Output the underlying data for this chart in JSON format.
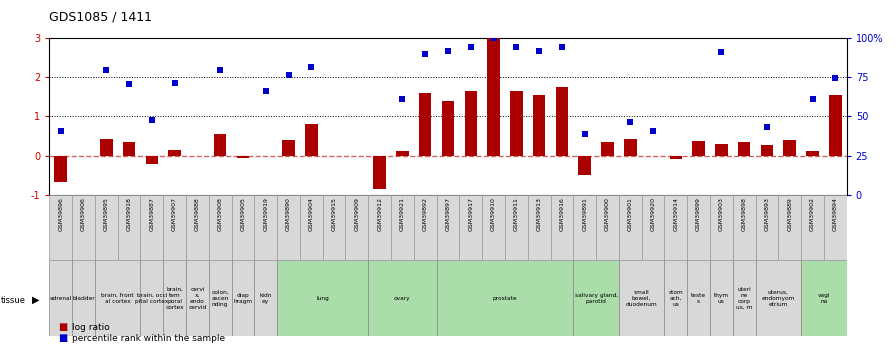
{
  "title": "GDS1085 / 1411",
  "samples": [
    "GSM39896",
    "GSM39906",
    "GSM39895",
    "GSM39918",
    "GSM39887",
    "GSM39907",
    "GSM39888",
    "GSM39908",
    "GSM39905",
    "GSM39919",
    "GSM39890",
    "GSM39904",
    "GSM39915",
    "GSM39909",
    "GSM39912",
    "GSM39921",
    "GSM39892",
    "GSM39897",
    "GSM39917",
    "GSM39910",
    "GSM39911",
    "GSM39913",
    "GSM39916",
    "GSM39891",
    "GSM39900",
    "GSM39901",
    "GSM39920",
    "GSM39914",
    "GSM39899",
    "GSM39903",
    "GSM39898",
    "GSM39893",
    "GSM39889",
    "GSM39902",
    "GSM39894"
  ],
  "log_ratio": [
    -0.68,
    0.0,
    0.42,
    0.35,
    -0.22,
    0.15,
    0.0,
    0.55,
    -0.05,
    0.0,
    0.4,
    0.82,
    0.0,
    0.0,
    -0.85,
    0.12,
    1.6,
    1.4,
    1.65,
    3.0,
    1.65,
    1.55,
    1.75,
    -0.5,
    0.35,
    0.42,
    0.0,
    -0.08,
    0.38,
    0.3,
    0.35,
    0.27,
    0.4,
    0.12,
    1.55
  ],
  "percentile_rank": [
    0.62,
    null,
    2.18,
    1.82,
    0.92,
    1.85,
    null,
    2.18,
    null,
    1.65,
    2.05,
    2.25,
    null,
    null,
    null,
    1.45,
    2.58,
    2.68,
    2.78,
    3.0,
    2.78,
    2.68,
    2.78,
    0.55,
    null,
    0.85,
    0.62,
    null,
    null,
    2.65,
    null,
    0.72,
    null,
    1.45,
    1.98
  ],
  "tissues": [
    {
      "name": "adrenal",
      "start": 0,
      "end": 1,
      "green": false
    },
    {
      "name": "bladder",
      "start": 1,
      "end": 2,
      "green": false
    },
    {
      "name": "brain, front\nal cortex",
      "start": 2,
      "end": 4,
      "green": false
    },
    {
      "name": "brain, occi\npital cortex",
      "start": 4,
      "end": 5,
      "green": false
    },
    {
      "name": "brain,\ntem\nporal\ncortex",
      "start": 5,
      "end": 6,
      "green": false
    },
    {
      "name": "cervi\nx,\nendo\ncervid",
      "start": 6,
      "end": 7,
      "green": false
    },
    {
      "name": "colon,\nascen\nnding",
      "start": 7,
      "end": 8,
      "green": false
    },
    {
      "name": "diap\nhragm",
      "start": 8,
      "end": 9,
      "green": false
    },
    {
      "name": "kidn\ney",
      "start": 9,
      "end": 10,
      "green": false
    },
    {
      "name": "lung",
      "start": 10,
      "end": 14,
      "green": true
    },
    {
      "name": "ovary",
      "start": 14,
      "end": 17,
      "green": true
    },
    {
      "name": "prostate",
      "start": 17,
      "end": 23,
      "green": true
    },
    {
      "name": "salivary gland,\nparotid",
      "start": 23,
      "end": 25,
      "green": true
    },
    {
      "name": "small\nbowel,\nduodenum",
      "start": 25,
      "end": 27,
      "green": false
    },
    {
      "name": "stom\nach,\nus",
      "start": 27,
      "end": 28,
      "green": false
    },
    {
      "name": "teste\ns",
      "start": 28,
      "end": 29,
      "green": false
    },
    {
      "name": "thym\nus",
      "start": 29,
      "end": 30,
      "green": false
    },
    {
      "name": "uteri\nne\ncorp\nus, m",
      "start": 30,
      "end": 31,
      "green": false
    },
    {
      "name": "uterus,\nendomyom\netrium",
      "start": 31,
      "end": 33,
      "green": false
    },
    {
      "name": "vagi\nna",
      "start": 33,
      "end": 35,
      "green": true
    }
  ],
  "bar_color": "#aa0000",
  "dot_color": "#0000cc",
  "gray_tissue_color": "#d8d8d8",
  "green_tissue_color": "#aaddaa",
  "sample_box_color": "#d8d8d8",
  "hline_zero_color": "#cc6666",
  "chart_bg": "#ffffff",
  "left_axis_color": "#cc0000",
  "right_axis_color": "#0000cc"
}
